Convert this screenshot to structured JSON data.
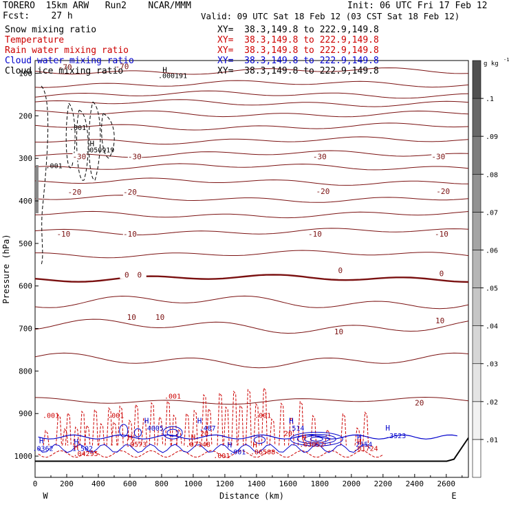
{
  "header": {
    "title_left": "TORERO  15km ARW   Run2    NCAR/MMM",
    "init": "Init: 06 UTC Fri 17 Feb 12",
    "fcst": "Fcst:    27 h",
    "valid": "Valid: 09 UTC Sat 18 Feb 12 (03 CST Sat 18 Feb 12)"
  },
  "fields": [
    {
      "name": "Snow mixing ratio",
      "xy": "XY=  38.3,149.8 to 222.9,149.8",
      "color": "#000000",
      "xy_color": "#000000"
    },
    {
      "name": "Temperature",
      "xy": "XY=  38.3,149.8 to 222.9,149.8",
      "color": "#cc0000",
      "xy_color": "#cc0000"
    },
    {
      "name": "Rain water mixing ratio",
      "xy": "XY=  38.3,149.8 to 222.9,149.8",
      "color": "#cc0000",
      "xy_color": "#cc0000"
    },
    {
      "name": "Cloud water mixing ratio",
      "xy": "XY=  38.3,149.8 to 222.9,149.8",
      "color": "#0000cc",
      "xy_color": "#0000cc"
    },
    {
      "name": "Cloud ice mixing ratio",
      "xy": "XY=  38.3,149.8 to 222.9,149.8",
      "color": "#000000",
      "xy_color": "#000000"
    }
  ],
  "chart_data": {
    "type": "line",
    "title": "",
    "xlabel": "Distance (km)",
    "ylabel": "Pressure (hPa)",
    "xlim": [
      0,
      2740
    ],
    "ylim": [
      1050,
      70
    ],
    "x_ticks": [
      0,
      200,
      400,
      600,
      800,
      1000,
      1200,
      1400,
      1600,
      1800,
      2000,
      2200,
      2400,
      2600
    ],
    "y_ticks": [
      100,
      200,
      300,
      400,
      500,
      600,
      700,
      800,
      900,
      1000
    ],
    "x_end_labels": {
      "left": "W",
      "right": "E"
    },
    "colorbar": {
      "unit": "g kg",
      "unit_exponent": "-1",
      "levels": [
        0.01,
        0.02,
        0.03,
        0.04,
        0.05,
        0.06,
        0.07,
        0.08,
        0.09,
        0.1
      ],
      "tick_labels": [
        ".01",
        ".02",
        ".03",
        ".04",
        ".05",
        ".06",
        ".07",
        ".08",
        ".09",
        ".1"
      ],
      "colors": [
        "#ffffff",
        "#f2f2f2",
        "#e4e4e4",
        "#d6d6d6",
        "#c6c6c6",
        "#b6b6b6",
        "#a4a4a4",
        "#929292",
        "#7e7e7e",
        "#686868",
        "#505050"
      ]
    },
    "temperature_lines": [
      {
        "value": -70,
        "pressure": 95
      },
      {
        "value": -65,
        "pressure": 125
      },
      {
        "value": -60,
        "pressure": 150
      },
      {
        "value": -55,
        "pressure": 170
      },
      {
        "value": -50,
        "pressure": 195
      },
      {
        "value": -45,
        "pressure": 225
      },
      {
        "value": -40,
        "pressure": 258
      },
      {
        "value": -35,
        "pressure": 290
      },
      {
        "value": -30,
        "pressure": 320
      },
      {
        "value": -25,
        "pressure": 355
      },
      {
        "value": -20,
        "pressure": 395
      },
      {
        "value": -15,
        "pressure": 432
      },
      {
        "value": -10,
        "pressure": 472
      },
      {
        "value": -5,
        "pressure": 525
      },
      {
        "value": 0,
        "pressure": 582
      },
      {
        "value": 5,
        "pressure": 638
      },
      {
        "value": 10,
        "pressure": 695
      },
      {
        "value": 15,
        "pressure": 775
      },
      {
        "value": 20,
        "pressure": 870
      }
    ],
    "temperature_labels": [
      {
        "text": "-70",
        "x": 550,
        "p": 90
      },
      {
        "text": "-70",
        "x": 190,
        "p": 92
      },
      {
        "text": "-30",
        "x": 1800,
        "p": 302
      },
      {
        "text": "-30",
        "x": 2550,
        "p": 302
      },
      {
        "text": "-30",
        "x": 630,
        "p": 302
      },
      {
        "text": "-30",
        "x": 280,
        "p": 302
      },
      {
        "text": "-20",
        "x": 1820,
        "p": 384
      },
      {
        "text": "-20",
        "x": 2580,
        "p": 384
      },
      {
        "text": "-20",
        "x": 600,
        "p": 385
      },
      {
        "text": "-20",
        "x": 250,
        "p": 385
      },
      {
        "text": "-10",
        "x": 1770,
        "p": 484
      },
      {
        "text": "-10",
        "x": 2570,
        "p": 484
      },
      {
        "text": "-10",
        "x": 600,
        "p": 484
      },
      {
        "text": "-10",
        "x": 180,
        "p": 484
      },
      {
        "text": "0",
        "x": 1930,
        "p": 570
      },
      {
        "text": "0",
        "x": 2570,
        "p": 577
      },
      {
        "text": "0",
        "x": 660,
        "p": 580
      },
      {
        "text": "0",
        "x": 580,
        "p": 580
      },
      {
        "text": "10",
        "x": 610,
        "p": 680
      },
      {
        "text": "10",
        "x": 790,
        "p": 680
      },
      {
        "text": "10",
        "x": 1920,
        "p": 714
      },
      {
        "text": "10",
        "x": 2560,
        "p": 688
      },
      {
        "text": "20",
        "x": 2430,
        "p": 881
      }
    ],
    "highs": [
      {
        "text": ".000191",
        "x": 870,
        "p": 111,
        "hx": 820,
        "hp": 98
      },
      {
        "text": ".050919",
        "x": 410,
        "p": 286,
        "hx": 360,
        "hp": 271
      },
      {
        "text": "4005",
        "x": 760,
        "p": 940,
        "hx": 705,
        "hp": 923,
        "color": "#0000cc"
      },
      {
        "text": ".487",
        "x": 1090,
        "p": 940,
        "hx": 1040,
        "hp": 923,
        "color": "#0000cc"
      },
      {
        "text": ".514",
        "x": 1650,
        "p": 940,
        "hx": 1620,
        "hp": 923,
        "color": "#0000cc"
      },
      {
        "text": ".3523",
        "x": 2280,
        "p": 958,
        "hx": 2230,
        "hp": 940,
        "color": "#0000cc"
      },
      {
        "text": ".0362",
        "x": 50,
        "p": 988,
        "hx": 40,
        "hp": 970,
        "color": "#0000cc"
      },
      {
        "text": "1.502",
        "x": 300,
        "p": 988,
        "hx": 260,
        "hp": 972,
        "color": "#0000cc"
      },
      {
        "text": ".04295",
        "x": 320,
        "p": 1000,
        "hx": 260,
        "hp": 985,
        "color": "#cc0000"
      },
      {
        "text": ".0573",
        "x": 640,
        "p": 978,
        "hx": 600,
        "hp": 962,
        "color": "#cc0000"
      },
      {
        "text": ".07148",
        "x": 1030,
        "p": 978,
        "hx": 1000,
        "hp": 962,
        "color": "#cc0000"
      },
      {
        "text": ".001",
        "x": 1280,
        "p": 996,
        "hx": 1230,
        "hp": 980,
        "color": "#0000cc"
      },
      {
        "text": ".06508",
        "x": 1440,
        "p": 996,
        "hx": 1390,
        "hp": 980,
        "color": "#cc0000"
      },
      {
        "text": ".03052",
        "x": 1750,
        "p": 978,
        "hx": 1700,
        "hp": 962,
        "color": "#cc0000"
      },
      {
        "text": "2554",
        "x": 2080,
        "p": 978,
        "hx": 2050,
        "hp": 962,
        "color": "#0000cc"
      },
      {
        "text": ".01724",
        "x": 2090,
        "p": 988,
        "hx": 2050,
        "hp": 972,
        "color": "#cc0000"
      }
    ],
    "misc_labels": [
      {
        "text": ".001",
        "x": 270,
        "p": 233,
        "color": "#000000"
      },
      {
        "text": ".001",
        "x": 120,
        "p": 323,
        "color": "#000000"
      },
      {
        "text": ".001",
        "x": 870,
        "p": 865,
        "color": "#cc0000"
      },
      {
        "text": ".001",
        "x": 100,
        "p": 910,
        "color": "#cc0000"
      },
      {
        "text": ".001",
        "x": 510,
        "p": 910,
        "color": "#cc0000"
      },
      {
        "text": ".001",
        "x": 1440,
        "p": 910,
        "color": "#cc0000"
      },
      {
        "text": ".001",
        "x": 1180,
        "p": 1005,
        "color": "#cc0000"
      },
      {
        "text": "20",
        "x": 1070,
        "p": 952,
        "color": "#cc0000"
      },
      {
        "text": "20",
        "x": 1600,
        "p": 952,
        "color": "#cc0000"
      }
    ]
  }
}
